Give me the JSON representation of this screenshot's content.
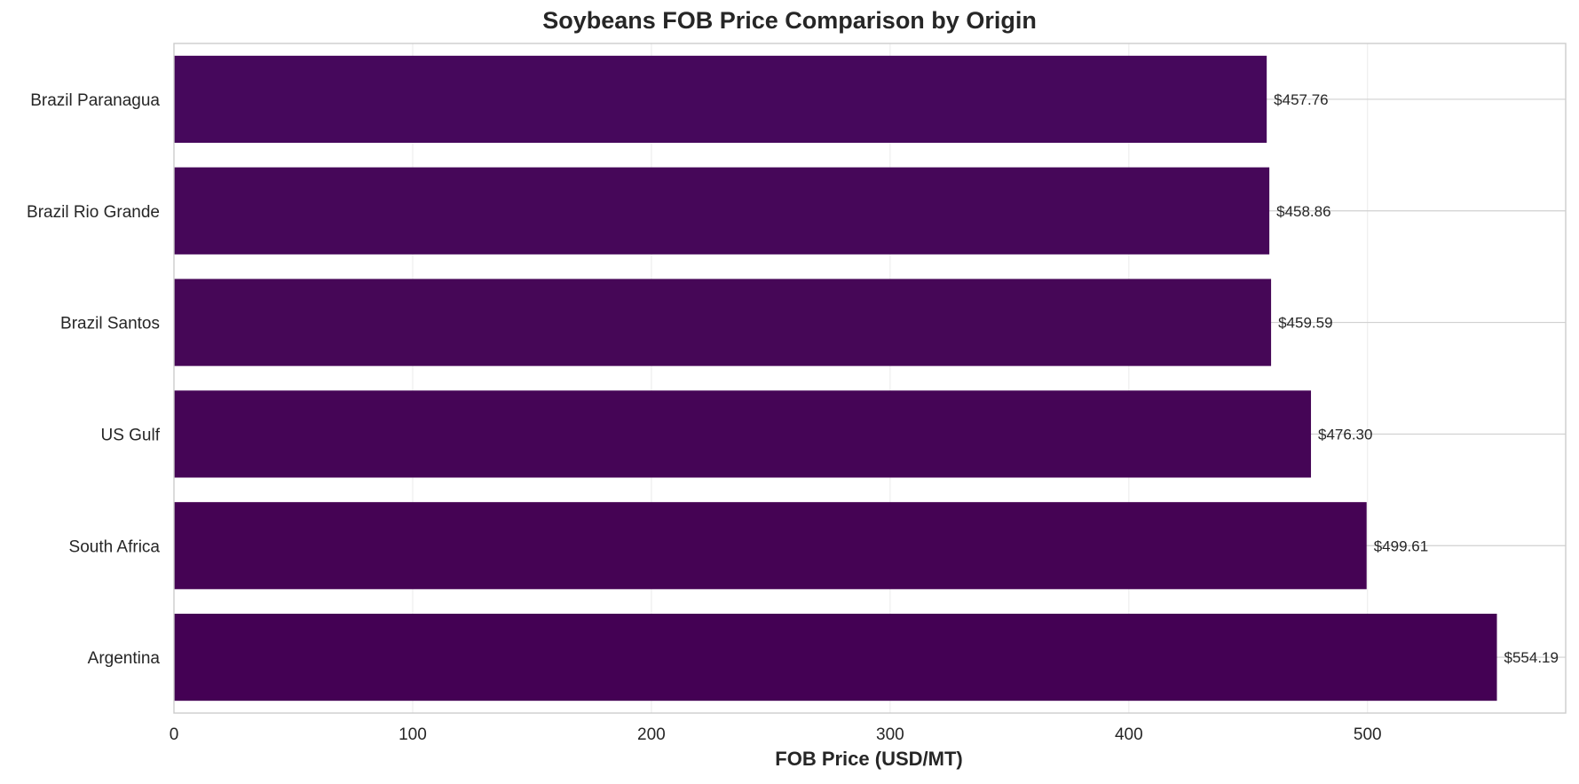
{
  "chart_data": {
    "type": "bar",
    "orientation": "horizontal",
    "title": "Soybeans FOB Price Comparison by Origin",
    "xlabel": "FOB Price (USD/MT)",
    "ylabel": "",
    "categories": [
      "Brazil Paranagua",
      "Brazil Rio Grande",
      "Brazil Santos",
      "US Gulf",
      "South Africa",
      "Argentina"
    ],
    "values": [
      457.76,
      458.86,
      459.59,
      476.3,
      499.61,
      554.19
    ],
    "value_labels": [
      "$457.76",
      "$458.86",
      "$459.59",
      "$476.30",
      "$499.61",
      "$554.19"
    ],
    "xlim": [
      0,
      583
    ],
    "xticks": [
      0,
      100,
      200,
      300,
      400,
      500
    ],
    "xtick_labels": [
      "0",
      "100",
      "200",
      "300",
      "400",
      "500"
    ],
    "grid": true,
    "bar_colors": [
      "#46085c",
      "#460759",
      "#460757",
      "#450556",
      "#450354",
      "#440154"
    ]
  }
}
